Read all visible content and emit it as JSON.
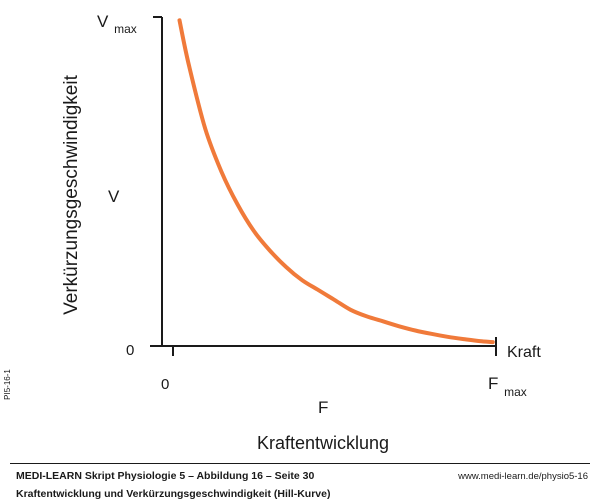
{
  "chart_data": {
    "type": "line",
    "title": "",
    "ylabel": "Verkürzungsgeschwindigkeit",
    "ylabel_symbol": "V",
    "y_max_label_main": "V",
    "y_max_label_sub": "max",
    "y_zero_label": "0",
    "xlabel": "Kraftentwicklung",
    "x_axis_end_label": "Kraft",
    "xlabel_symbol": "F",
    "x_zero_label": "0",
    "x_max_label_main": "F",
    "x_max_label_sub": "max",
    "xlim": [
      0,
      1
    ],
    "ylim": [
      0,
      1
    ],
    "grid": false,
    "series": [
      {
        "color": "#f07a3a",
        "x": [
          0.02,
          0.05,
          0.1,
          0.15,
          0.2,
          0.25,
          0.3,
          0.35,
          0.4,
          0.45,
          0.5,
          0.55,
          0.6,
          0.65,
          0.7,
          0.75,
          0.8,
          0.85,
          0.9,
          0.95,
          0.99
        ],
        "y": [
          0.99,
          0.85,
          0.66,
          0.53,
          0.43,
          0.35,
          0.29,
          0.24,
          0.2,
          0.17,
          0.14,
          0.11,
          0.09,
          0.075,
          0.06,
          0.047,
          0.037,
          0.028,
          0.021,
          0.015,
          0.012
        ]
      }
    ]
  },
  "footer": {
    "line1": "MEDI-LEARN Skript Physiologie 5 – Abbildung 16 – Seite 30",
    "line2": "Kraftentwicklung und Verkürzungsgeschwindigkeit (Hill-Kurve)",
    "url": "www.medi-learn.de/physio5-16",
    "code": "PI5-16-1"
  }
}
